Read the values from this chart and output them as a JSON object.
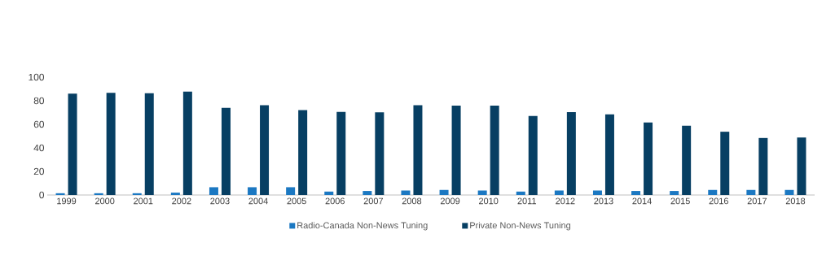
{
  "chart_data": {
    "type": "bar",
    "categories": [
      "1999",
      "2000",
      "2001",
      "2002",
      "2003",
      "2004",
      "2005",
      "2006",
      "2007",
      "2008",
      "2009",
      "2010",
      "2011",
      "2012",
      "2013",
      "2014",
      "2015",
      "2016",
      "2017",
      "2018"
    ],
    "series": [
      {
        "name": "Radio-Canada Non-News Tuning",
        "color": "#1b78c2",
        "values": [
          1.5,
          1.5,
          1.5,
          2,
          6.6,
          6.6,
          6.6,
          2.9,
          3.4,
          3.8,
          4.3,
          3.8,
          2.9,
          3.8,
          3.8,
          3.4,
          3.4,
          4.3,
          4.3,
          4.3
        ]
      },
      {
        "name": "Private Non-News Tuning",
        "color": "#073f63",
        "values": [
          86,
          86.8,
          86.3,
          87.7,
          73.9,
          76.2,
          72,
          70.6,
          70.2,
          76.2,
          75.8,
          75.8,
          67.1,
          70.3,
          68.5,
          61.6,
          58.8,
          53.7,
          48.4,
          48.8
        ]
      }
    ],
    "ylim": [
      0,
      100
    ],
    "yticks": [
      0,
      20,
      40,
      60,
      80,
      100
    ],
    "grid": false,
    "legend": "bottom"
  }
}
